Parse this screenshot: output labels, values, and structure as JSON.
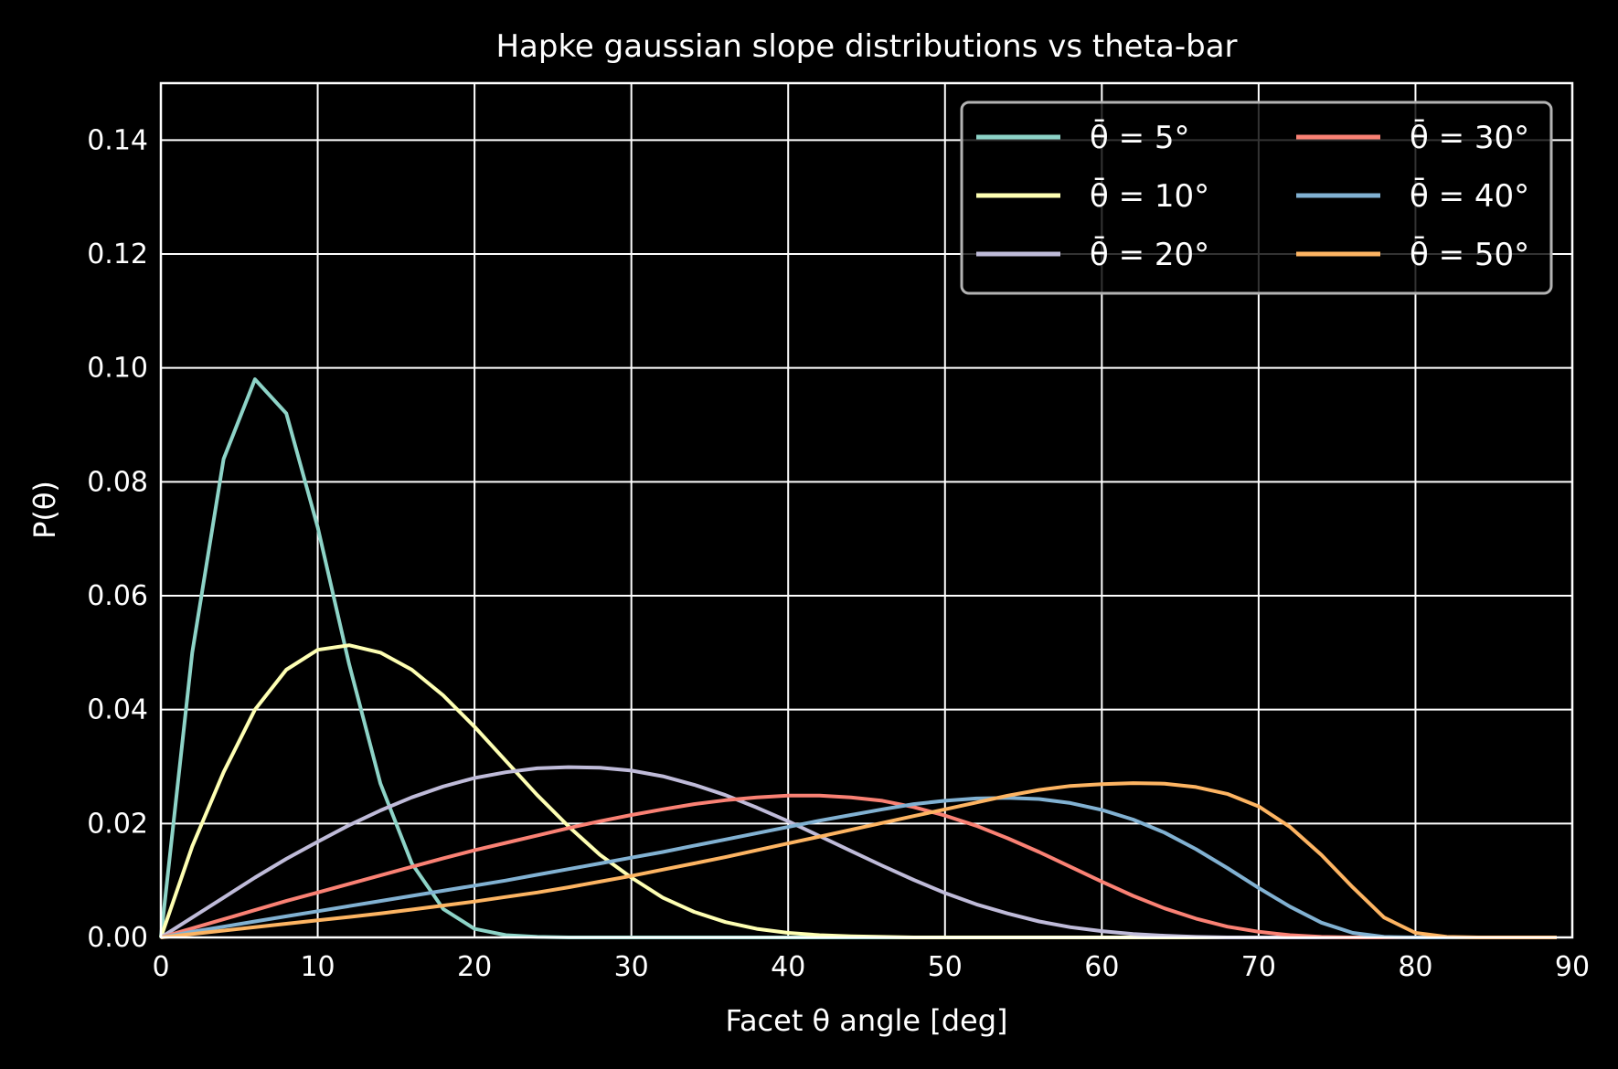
{
  "chart_data": {
    "type": "line",
    "title": "Hapke gaussian slope distributions vs theta-bar",
    "xlabel": "Facet θ angle [deg]",
    "ylabel": "P(θ)",
    "xlim": [
      0,
      90
    ],
    "ylim": [
      0,
      0.15
    ],
    "x_ticks": [
      "0",
      "10",
      "20",
      "30",
      "40",
      "50",
      "60",
      "70",
      "80",
      "90"
    ],
    "y_ticks": [
      "0.00",
      "0.02",
      "0.04",
      "0.06",
      "0.08",
      "0.10",
      "0.12",
      "0.14"
    ],
    "grid": true,
    "legend_placement": "top-right",
    "legend_columns": 2,
    "background": "#000000",
    "foreground": "#ffffff",
    "x": [
      0,
      2,
      4,
      6,
      8,
      10,
      12,
      14,
      16,
      18,
      20,
      22,
      24,
      26,
      28,
      30,
      32,
      34,
      36,
      38,
      40,
      42,
      44,
      46,
      48,
      50,
      52,
      54,
      56,
      58,
      60,
      62,
      64,
      66,
      68,
      70,
      72,
      74,
      76,
      78,
      80,
      82,
      84,
      86,
      88,
      89
    ],
    "series": [
      {
        "name": "θ̄ = 5°",
        "color": "#8dd3c7",
        "values": [
          0,
          0.05,
          0.084,
          0.098,
          0.092,
          0.072,
          0.048,
          0.027,
          0.013,
          0.005,
          0.0015,
          0.0004,
          0.0001,
          0,
          0,
          0,
          0,
          0,
          0,
          0,
          0,
          0,
          0,
          0,
          0,
          0,
          0,
          0,
          0,
          0,
          0,
          0,
          0,
          0,
          0,
          0,
          0,
          0,
          0,
          0,
          0,
          0,
          0,
          0,
          0,
          0
        ]
      },
      {
        "name": "θ̄ = 10°",
        "color": "#feffb3",
        "values": [
          0,
          0.016,
          0.029,
          0.04,
          0.047,
          0.0505,
          0.0513,
          0.05,
          0.047,
          0.0425,
          0.037,
          0.031,
          0.025,
          0.0195,
          0.0145,
          0.0105,
          0.007,
          0.0045,
          0.0027,
          0.0015,
          0.0008,
          0.0004,
          0.0002,
          0.0001,
          0,
          0,
          0,
          0,
          0,
          0,
          0,
          0,
          0,
          0,
          0,
          0,
          0,
          0,
          0,
          0,
          0,
          0,
          0,
          0,
          0,
          0
        ]
      },
      {
        "name": "θ̄ = 20°",
        "color": "#bfbbd9",
        "values": [
          0,
          0.0035,
          0.007,
          0.0105,
          0.0138,
          0.0168,
          0.0197,
          0.0223,
          0.0246,
          0.0265,
          0.028,
          0.029,
          0.0297,
          0.0299,
          0.0298,
          0.0293,
          0.0283,
          0.0268,
          0.025,
          0.0228,
          0.0204,
          0.0178,
          0.0152,
          0.0126,
          0.0101,
          0.0078,
          0.0058,
          0.0042,
          0.0028,
          0.0018,
          0.0011,
          0.0006,
          0.0003,
          0.0001,
          0,
          0,
          0,
          0,
          0,
          0,
          0,
          0,
          0,
          0,
          0,
          0
        ]
      },
      {
        "name": "θ̄ = 30°",
        "color": "#fa8174",
        "values": [
          0,
          0.0016,
          0.0032,
          0.0048,
          0.0064,
          0.0079,
          0.0094,
          0.0109,
          0.0124,
          0.0139,
          0.0153,
          0.0166,
          0.0179,
          0.0192,
          0.0204,
          0.0215,
          0.0225,
          0.0234,
          0.0241,
          0.0246,
          0.0249,
          0.0249,
          0.0246,
          0.024,
          0.0229,
          0.0214,
          0.0196,
          0.0174,
          0.015,
          0.0124,
          0.0098,
          0.0073,
          0.0051,
          0.0033,
          0.0019,
          0.001,
          0.0004,
          0.0001,
          0,
          0,
          0,
          0,
          0,
          0,
          0,
          0
        ]
      },
      {
        "name": "θ̄ = 40°",
        "color": "#81b1d2",
        "values": [
          0,
          0.001,
          0.0019,
          0.0028,
          0.0037,
          0.0046,
          0.0055,
          0.0064,
          0.0073,
          0.0082,
          0.0091,
          0.01,
          0.011,
          0.012,
          0.013,
          0.014,
          0.015,
          0.0161,
          0.0172,
          0.0183,
          0.0194,
          0.0205,
          0.0215,
          0.0225,
          0.0234,
          0.024,
          0.0244,
          0.0245,
          0.0243,
          0.0236,
          0.0224,
          0.0207,
          0.0184,
          0.0155,
          0.0122,
          0.0087,
          0.0054,
          0.0026,
          0.0008,
          0.0001,
          0,
          0,
          0,
          0,
          0,
          0
        ]
      },
      {
        "name": "θ̄ = 50°",
        "color": "#fdb462",
        "values": [
          0,
          0.0006,
          0.0012,
          0.0018,
          0.0024,
          0.003,
          0.0036,
          0.0042,
          0.0049,
          0.0056,
          0.0063,
          0.0071,
          0.0079,
          0.0088,
          0.0098,
          0.0108,
          0.0119,
          0.013,
          0.0141,
          0.0153,
          0.0165,
          0.0177,
          0.0189,
          0.0201,
          0.0213,
          0.0225,
          0.0237,
          0.0249,
          0.0259,
          0.0266,
          0.0269,
          0.0271,
          0.027,
          0.0264,
          0.0252,
          0.023,
          0.0194,
          0.0145,
          0.0088,
          0.0035,
          0.0008,
          0.0001,
          0,
          0,
          0,
          0
        ]
      }
    ]
  }
}
